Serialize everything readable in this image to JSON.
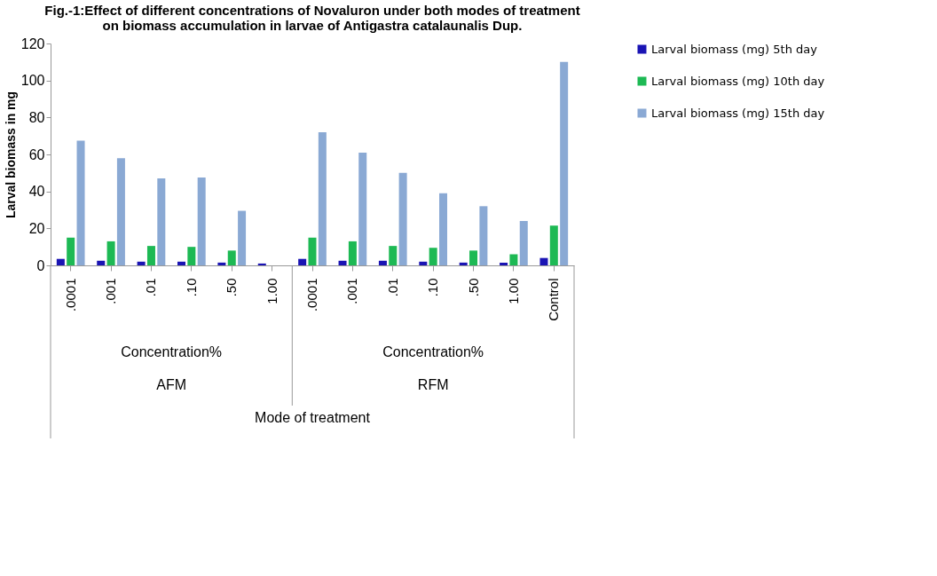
{
  "chart_data": {
    "type": "bar",
    "title": "Fig.-1:Effect of different concentrations of Novaluron under both modes of treatment\non biomass accumulation in larvae of Antigastra catalaunalis Dup.",
    "ylabel": "Larval biomass in mg",
    "categories": [
      ".0001",
      ".001",
      ".01",
      ".10",
      ".50",
      "1.00",
      ".0001",
      ".001",
      ".01",
      ".10",
      ".50",
      "1.00",
      "Control"
    ],
    "series": [
      {
        "name": "Larval biomass (mg)  5th day",
        "color": "#1a14b4",
        "values": [
          3.5,
          2.5,
          2,
          2,
          1.5,
          1,
          3.5,
          2.5,
          2.5,
          2,
          1.5,
          1.5,
          4
        ]
      },
      {
        "name": "Larval biomass (mg)  10th day",
        "color": "#1db954",
        "values": [
          15,
          13,
          10.5,
          10,
          8,
          null,
          15,
          13,
          10.5,
          9.5,
          8,
          6,
          21.5
        ]
      },
      {
        "name": "Larval biomass (mg)  15th day",
        "color": "#8aa9d4",
        "values": [
          67.5,
          58,
          47,
          47.5,
          29.5,
          null,
          72,
          61,
          50,
          39,
          32,
          24,
          110
        ]
      }
    ],
    "annotations": [
      "Concentration%",
      "AFM",
      "Concentration%",
      "RFM",
      "Mode of treatment"
    ],
    "ylim": [
      0,
      120
    ],
    "yticks": [
      0,
      20,
      40,
      60,
      80,
      100,
      120
    ],
    "grid": false,
    "legend": "right"
  }
}
